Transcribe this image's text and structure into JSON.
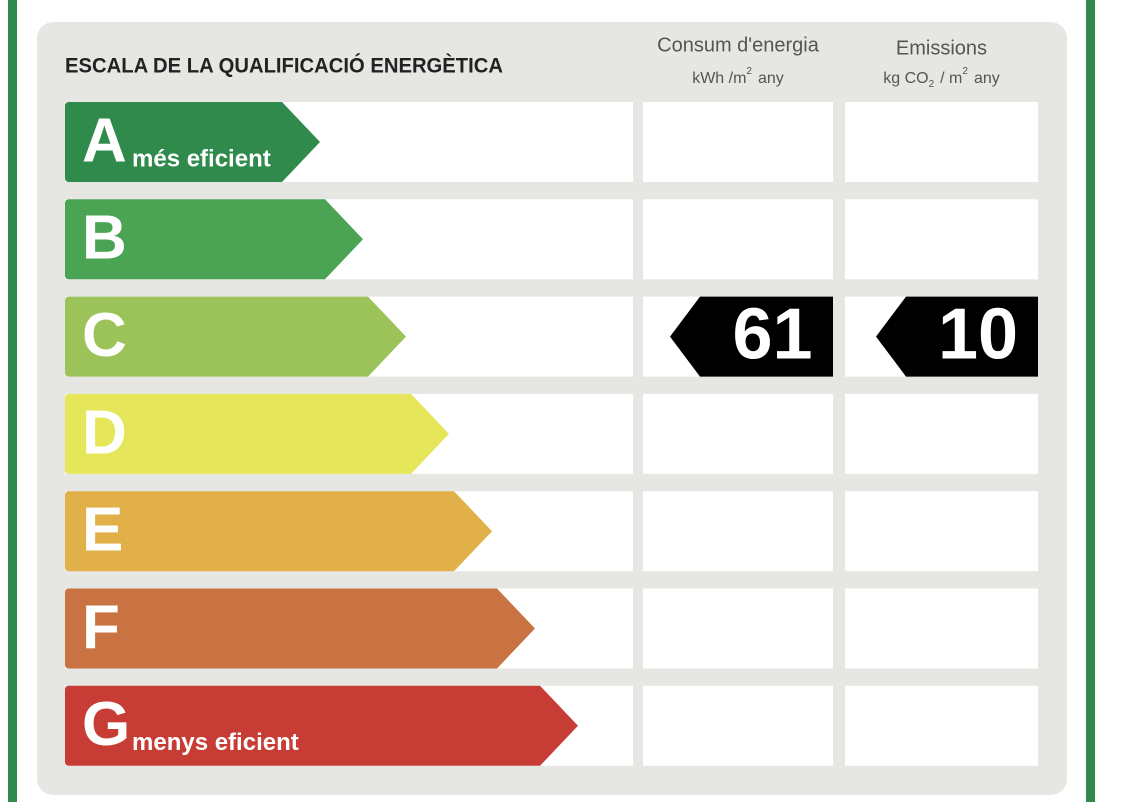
{
  "title": "ESCALA DE LA QUALIFICACIÓ ENERGÈTICA",
  "columns": [
    {
      "title": "Consum d'energia",
      "unit_parts": [
        {
          "text": "kWh /m"
        },
        {
          "text": "2",
          "pos": "sup"
        },
        {
          "text": "any"
        }
      ]
    },
    {
      "title": "Emissions",
      "unit_parts": [
        {
          "text": "kg CO"
        },
        {
          "text": "2",
          "pos": "sub"
        },
        {
          "text": "/ m"
        },
        {
          "text": "2",
          "pos": "sup"
        },
        {
          "text": "any"
        }
      ]
    }
  ],
  "ratings": [
    {
      "letter": "A",
      "label": "més eficient",
      "color": "#2f8a4b"
    },
    {
      "letter": "B",
      "color": "#4aa454"
    },
    {
      "letter": "C",
      "color": "#9cc35a"
    },
    {
      "letter": "D",
      "color": "#e6e65b"
    },
    {
      "letter": "E",
      "color": "#e2b049"
    },
    {
      "letter": "F",
      "color": "#c87341"
    },
    {
      "letter": "G",
      "label": "menys eficient",
      "color": "#c73d35"
    }
  ],
  "result": {
    "rating": "C",
    "values": [
      "61",
      "10"
    ]
  }
}
